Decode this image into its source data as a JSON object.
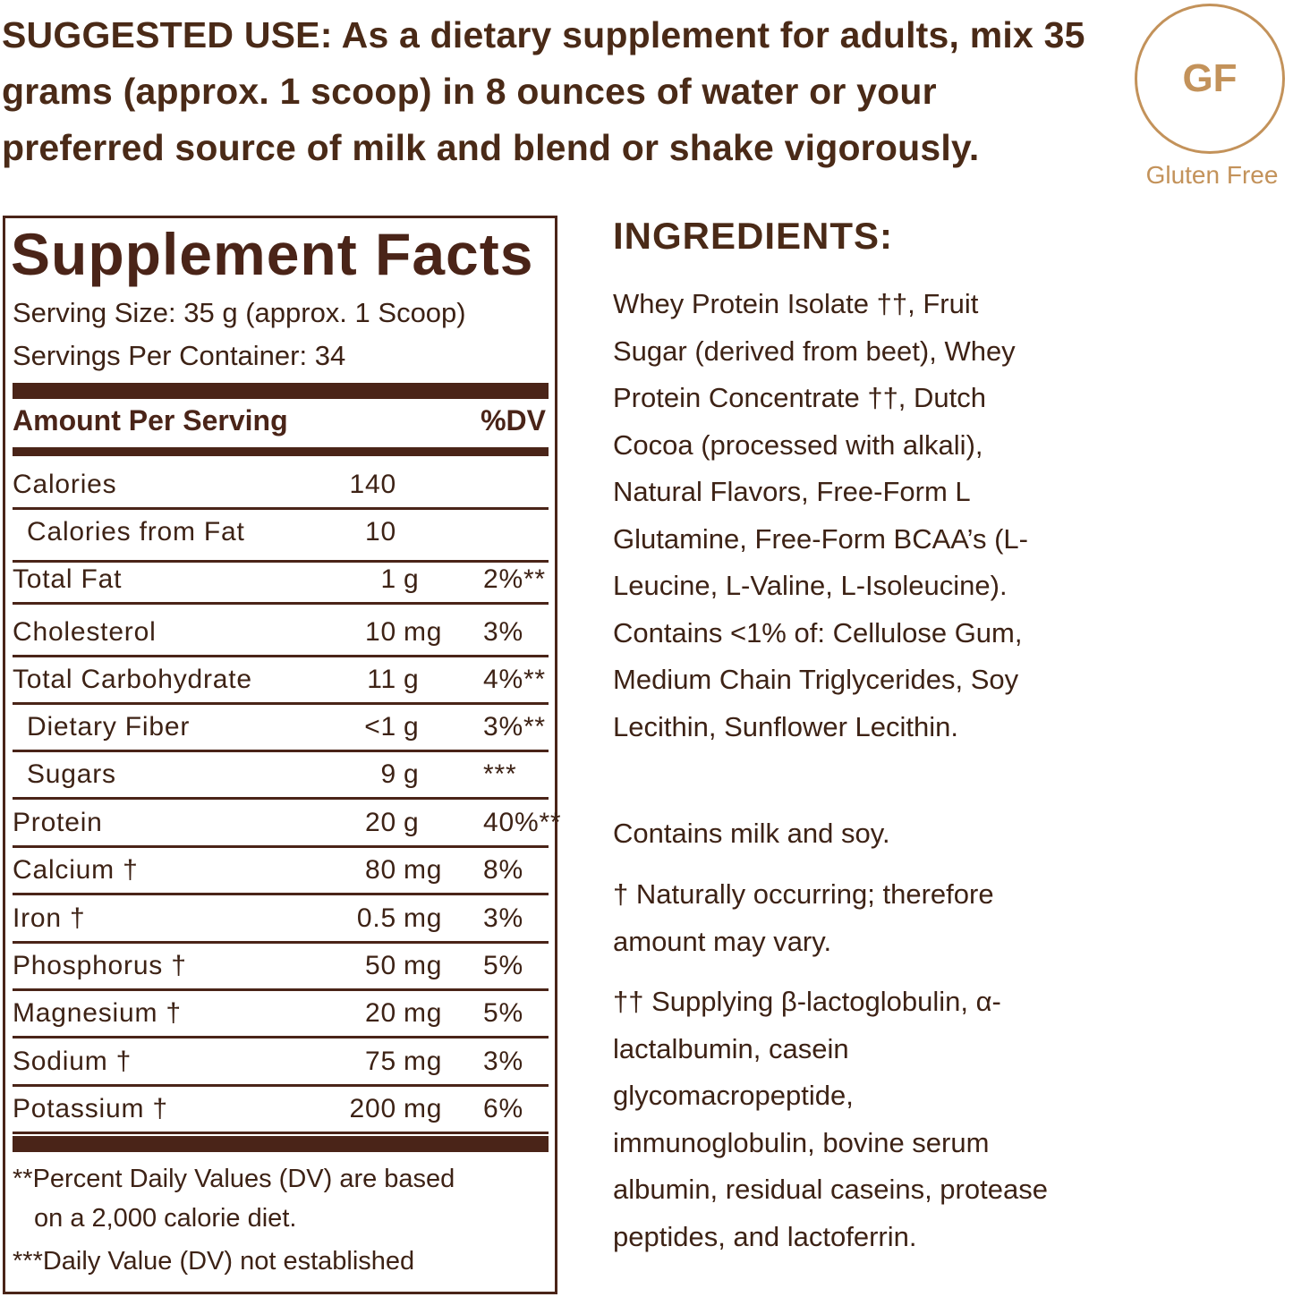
{
  "suggested_use": "SUGGESTED USE: As a dietary supplement for adults, mix 35 grams (approx. 1 scoop) in 8 ounces of water or your preferred source of milk and blend or shake vigorously.",
  "badge": {
    "text": "GF",
    "label": "Gluten Free",
    "color": "#c3925a"
  },
  "facts": {
    "title": "Supplement Facts",
    "serving_size": "Serving Size: 35 g (approx. 1  Scoop)",
    "servings_per_container": "Servings Per Container: 34",
    "amount_header": "Amount Per Serving",
    "dv_header": "%DV",
    "rows": [
      {
        "name": "Calories",
        "value": "140",
        "unit": "",
        "dv": ""
      },
      {
        "name": "Calories from Fat",
        "value": "10",
        "unit": "",
        "dv": ""
      },
      {
        "name": "Total Fat",
        "value": "1",
        "unit": "g",
        "dv": "2%**"
      },
      {
        "name": "Cholesterol",
        "value": "10",
        "unit": "mg",
        "dv": "3%"
      },
      {
        "name": "Total Carbohydrate",
        "value": "11",
        "unit": "g",
        "dv": "4%**"
      },
      {
        "name": "Dietary Fiber",
        "value": "<1",
        "unit": "g",
        "dv": "3%**"
      },
      {
        "name": "Sugars",
        "value": "9",
        "unit": "g",
        "dv": "***"
      },
      {
        "name": "Protein",
        "value": "20",
        "unit": "g",
        "dv": "40%**"
      },
      {
        "name": "Calcium †",
        "value": "80",
        "unit": "mg",
        "dv": "8%"
      },
      {
        "name": "Iron †",
        "value": "0.5",
        "unit": "mg",
        "dv": "3%"
      },
      {
        "name": "Phosphorus †",
        "value": "50",
        "unit": "mg",
        "dv": "5%"
      },
      {
        "name": "Magnesium †",
        "value": "20",
        "unit": "mg",
        "dv": "5%"
      },
      {
        "name": "Sodium †",
        "value": "75",
        "unit": "mg",
        "dv": "3%"
      },
      {
        "name": "Potassium †",
        "value": "200",
        "unit": "mg",
        "dv": "6%"
      }
    ],
    "footnote_1a": "**Percent Daily Values (DV) are based",
    "footnote_1b": "on a 2,000 calorie diet.",
    "footnote_2": "***Daily Value (DV) not established",
    "brand_color": "#4a2418"
  },
  "ingredients": {
    "heading": "INGREDIENTS:",
    "text": "Whey Protein Isolate ††, Fruit Sugar (derived from beet), Whey Protein Concentrate ††, Dutch Cocoa (processed with alkali), Natural Flavors, Free-Form L Glutamine, Free-Form BCAA’s (L-Leucine, L-Valine, L-Isoleucine). Contains <1% of: Cellulose Gum, Medium Chain Triglycerides, Soy Lecithin, Sunflower Lecithin.",
    "allergens": "Contains milk and soy.",
    "note_1": "† Naturally occurring; therefore amount may vary.",
    "note_2": "†† Supplying β-lactoglobulin, α-lactalbumin, casein glycomacropeptide, immunoglobulin, bovine serum albumin, residual caseins, protease peptides, and lactoferrin."
  }
}
